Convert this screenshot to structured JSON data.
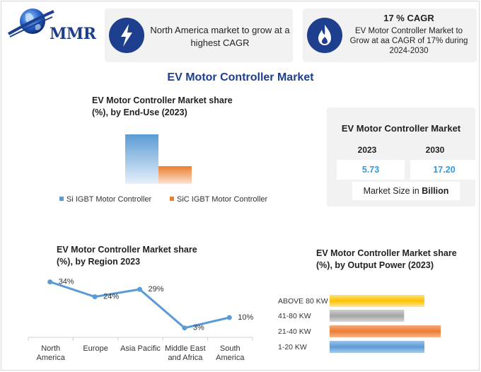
{
  "logo": {
    "text": "MMR"
  },
  "highlight_cards": [
    {
      "icon": "lightning-icon",
      "text": "North America market to grow at a highest CAGR"
    },
    {
      "icon": "flame-icon",
      "headline": "17 % CAGR",
      "text": "EV Motor Controller Market to Grow at aa CAGR of 17% during 2024-2030"
    }
  ],
  "main_title": "EV Motor Controller Market",
  "market_size": {
    "title": "EV Motor Controller Market",
    "years": [
      "2023",
      "2030"
    ],
    "values": [
      "5.73",
      "17.20"
    ],
    "unit_prefix": "Market Size in ",
    "unit_bold": "Billion"
  },
  "chart_data": [
    {
      "type": "bar",
      "title": "EV Motor Controller Market share (%), by End-Use (2023)",
      "categories": [
        "Si IGBT Motor Controller",
        "SiC IGBT Motor Controller"
      ],
      "values": [
        70,
        25
      ],
      "colors": [
        "#5b9bd5",
        "#ed7d31"
      ],
      "legend": "bottom"
    },
    {
      "type": "line",
      "title": "EV Motor Controller Market share (%), by Region 2023",
      "categories": [
        "North America",
        "Europe",
        "Asia Pacific",
        "Middle East and Africa",
        "South America"
      ],
      "category_lines": [
        [
          "North",
          "America"
        ],
        [
          "Europe"
        ],
        [
          "Asia Pacific"
        ],
        [
          "Middle East",
          "and Africa"
        ],
        [
          "South",
          "America"
        ]
      ],
      "values": [
        34,
        24,
        29,
        3,
        10
      ],
      "labels": [
        "34%",
        "24%",
        "29%",
        "3%",
        "10%"
      ],
      "color": "#5b9bd5"
    },
    {
      "type": "bar",
      "orientation": "horizontal",
      "title": "EV Motor Controller Market share (%), by Output Power (2023)",
      "categories": [
        "ABOVE 80 KW",
        "41-80 KW",
        "21-40 KW",
        "1-20 KW"
      ],
      "values": [
        70,
        55,
        82,
        70
      ],
      "colors": [
        "#ffc000",
        "#a5a5a5",
        "#ed7d31",
        "#5b9bd5"
      ]
    }
  ]
}
